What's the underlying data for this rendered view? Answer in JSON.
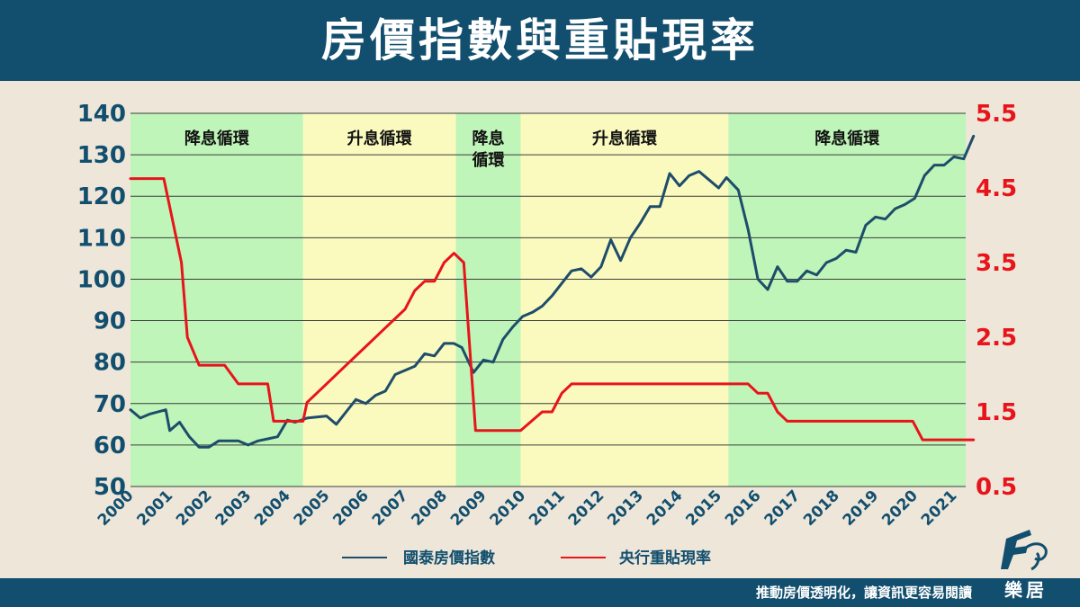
{
  "title": "房價指數與重貼現率",
  "footer": {
    "slogan": "推動房價透明化，讓資訊更容易閱讀",
    "brand": "樂居"
  },
  "chart_data": {
    "type": "line",
    "x_ticks": [
      "2000",
      "2001",
      "2002",
      "2003",
      "2004",
      "2005",
      "2006",
      "2007",
      "2008",
      "2009",
      "2010",
      "2011",
      "2012",
      "2013",
      "2014",
      "2015",
      "2016",
      "2017",
      "2018",
      "2019",
      "2020",
      "2021"
    ],
    "y_left": {
      "ticks": [
        "140",
        "130",
        "120",
        "110",
        "100",
        "90",
        "80",
        "70",
        "60",
        "50"
      ],
      "lim": [
        50,
        140
      ],
      "color": "#124f6e"
    },
    "y_right": {
      "ticks": [
        "5.5",
        "4.5",
        "3.5",
        "2.5",
        "1.5",
        "0.5"
      ],
      "lim": [
        0.5,
        5.5
      ],
      "color": "#e8141b"
    },
    "grid": true,
    "phases": [
      {
        "start": 2000.0,
        "end": 2004.4,
        "label": "降息循環",
        "color": "#bff5b8"
      },
      {
        "start": 2004.4,
        "end": 2008.3,
        "label": "升息循環",
        "color": "#fafabf"
      },
      {
        "start": 2008.3,
        "end": 2009.95,
        "label": "降息循環",
        "color": "#bff5b8"
      },
      {
        "start": 2009.95,
        "end": 2015.25,
        "label": "升息循環",
        "color": "#fafabf"
      },
      {
        "start": 2015.25,
        "end": 2021.3,
        "label": "降息循環",
        "color": "#bff5b8"
      }
    ],
    "series": [
      {
        "name": "國泰房價指數",
        "axis": "left",
        "color": "#1e4d6b",
        "points": [
          [
            2000.0,
            68.5
          ],
          [
            2000.25,
            66.5
          ],
          [
            2000.5,
            67.5
          ],
          [
            2000.9,
            68.5
          ],
          [
            2001.0,
            63.5
          ],
          [
            2001.25,
            65.5
          ],
          [
            2001.5,
            62
          ],
          [
            2001.75,
            59.5
          ],
          [
            2002.0,
            59.5
          ],
          [
            2002.25,
            61
          ],
          [
            2002.5,
            61
          ],
          [
            2002.75,
            61
          ],
          [
            2003.0,
            60
          ],
          [
            2003.25,
            61
          ],
          [
            2003.5,
            61.5
          ],
          [
            2003.75,
            62
          ],
          [
            2004.0,
            66
          ],
          [
            2004.2,
            65.5
          ],
          [
            2004.5,
            66.5
          ],
          [
            2005.0,
            67
          ],
          [
            2005.25,
            65
          ],
          [
            2005.5,
            68
          ],
          [
            2005.75,
            71
          ],
          [
            2006.0,
            70
          ],
          [
            2006.25,
            72
          ],
          [
            2006.5,
            73
          ],
          [
            2006.75,
            77
          ],
          [
            2007.0,
            78
          ],
          [
            2007.25,
            79
          ],
          [
            2007.5,
            82
          ],
          [
            2007.75,
            81.5
          ],
          [
            2008.0,
            84.5
          ],
          [
            2008.25,
            84.5
          ],
          [
            2008.45,
            83.5
          ],
          [
            2008.75,
            77.5
          ],
          [
            2009.0,
            80.5
          ],
          [
            2009.25,
            80
          ],
          [
            2009.5,
            85.5
          ],
          [
            2009.75,
            88.5
          ],
          [
            2010.0,
            91
          ],
          [
            2010.25,
            92
          ],
          [
            2010.5,
            93.5
          ],
          [
            2010.75,
            96
          ],
          [
            2011.0,
            99
          ],
          [
            2011.25,
            102
          ],
          [
            2011.5,
            102.5
          ],
          [
            2011.75,
            100.5
          ],
          [
            2012.0,
            103
          ],
          [
            2012.25,
            109.5
          ],
          [
            2012.5,
            104.5
          ],
          [
            2012.75,
            110
          ],
          [
            2013.0,
            113.5
          ],
          [
            2013.25,
            117.5
          ],
          [
            2013.5,
            117.5
          ],
          [
            2013.75,
            125.5
          ],
          [
            2014.0,
            122.5
          ],
          [
            2014.25,
            125
          ],
          [
            2014.5,
            126
          ],
          [
            2014.75,
            124
          ],
          [
            2015.0,
            122
          ],
          [
            2015.2,
            124.5
          ],
          [
            2015.4,
            122.5
          ],
          [
            2015.5,
            121.5
          ],
          [
            2015.75,
            112
          ],
          [
            2016.0,
            100
          ],
          [
            2016.25,
            97.5
          ],
          [
            2016.5,
            103
          ],
          [
            2016.75,
            99.5
          ],
          [
            2017.0,
            99.5
          ],
          [
            2017.25,
            102
          ],
          [
            2017.5,
            101
          ],
          [
            2017.75,
            104
          ],
          [
            2018.0,
            105
          ],
          [
            2018.25,
            107
          ],
          [
            2018.5,
            106.5
          ],
          [
            2018.75,
            113
          ],
          [
            2019.0,
            115
          ],
          [
            2019.25,
            114.5
          ],
          [
            2019.5,
            117
          ],
          [
            2019.75,
            118
          ],
          [
            2020.0,
            119.5
          ],
          [
            2020.25,
            125
          ],
          [
            2020.5,
            127.5
          ],
          [
            2020.75,
            127.5
          ],
          [
            2021.0,
            129.5
          ],
          [
            2021.25,
            129
          ],
          [
            2021.5,
            134.5
          ]
        ]
      },
      {
        "name": "央行重貼現率",
        "axis": "right",
        "color": "#e8141b",
        "points": [
          [
            2000.0,
            4.625
          ],
          [
            2000.85,
            4.625
          ],
          [
            2001.3,
            3.5
          ],
          [
            2001.45,
            2.5
          ],
          [
            2001.75,
            2.125
          ],
          [
            2002.4,
            2.125
          ],
          [
            2002.75,
            1.875
          ],
          [
            2003.5,
            1.875
          ],
          [
            2003.65,
            1.375
          ],
          [
            2004.4,
            1.375
          ],
          [
            2004.5,
            1.625
          ],
          [
            2005.0,
            1.875
          ],
          [
            2005.5,
            2.125
          ],
          [
            2006.0,
            2.375
          ],
          [
            2006.5,
            2.625
          ],
          [
            2007.0,
            2.875
          ],
          [
            2007.25,
            3.125
          ],
          [
            2007.5,
            3.25
          ],
          [
            2007.75,
            3.25
          ],
          [
            2008.0,
            3.5
          ],
          [
            2008.25,
            3.625
          ],
          [
            2008.5,
            3.5
          ],
          [
            2008.8,
            1.25
          ],
          [
            2009.0,
            1.25
          ],
          [
            2009.95,
            1.25
          ],
          [
            2010.5,
            1.5
          ],
          [
            2010.75,
            1.5
          ],
          [
            2011.0,
            1.75
          ],
          [
            2011.25,
            1.875
          ],
          [
            2015.75,
            1.875
          ],
          [
            2016.0,
            1.75
          ],
          [
            2016.25,
            1.75
          ],
          [
            2016.5,
            1.5
          ],
          [
            2016.75,
            1.375
          ],
          [
            2019.95,
            1.375
          ],
          [
            2020.2,
            1.125
          ],
          [
            2021.5,
            1.125
          ]
        ]
      }
    ],
    "legend": {
      "position": "bottom-center"
    }
  }
}
